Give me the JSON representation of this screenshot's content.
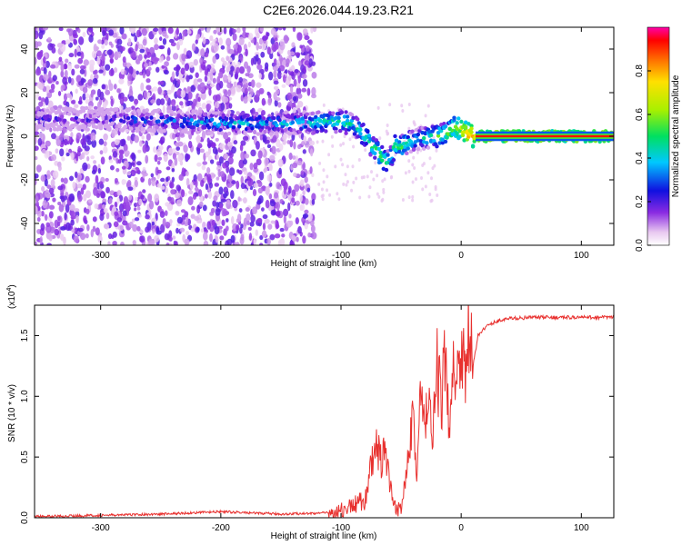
{
  "title": "C2E6.2026.044.19.23.R21",
  "chart_data": [
    {
      "type": "heatmap",
      "xlabel": "Height of straight line (km)",
      "ylabel": "Frequency (Hz)",
      "xlim": [
        -355,
        127
      ],
      "ylim": [
        -50,
        50
      ],
      "xticks": [
        -300,
        -200,
        -100,
        0,
        100
      ],
      "yticks": [
        -40,
        -20,
        0,
        20,
        40
      ],
      "colorbar": {
        "label": "Normalized spectral amplitude",
        "range": [
          0,
          1
        ],
        "ticks": [
          "0.0",
          "0.2",
          "0.4",
          "0.6",
          "0.8"
        ],
        "tick_values": [
          0,
          0.2,
          0.4,
          0.6,
          0.8
        ]
      },
      "ridge": {
        "x": [
          -355,
          -300,
          -250,
          -200,
          -150,
          -125,
          -110,
          -100,
          -95,
          -90,
          -85,
          -80,
          -75,
          -70,
          -65,
          -60,
          -55,
          -50,
          -45,
          -40,
          -35,
          -30,
          -25,
          -20,
          -15,
          -10,
          -5,
          0,
          5,
          10,
          127
        ],
        "y": [
          8,
          8,
          7,
          6,
          6,
          6,
          7,
          7,
          6,
          5,
          3,
          0,
          -4,
          -7,
          -10,
          -12,
          -4,
          -5,
          -3,
          -2,
          -1,
          -1,
          0,
          0,
          1,
          2,
          4,
          3,
          1,
          0,
          0
        ],
        "amp": [
          0.25,
          0.3,
          0.4,
          0.45,
          0.45,
          0.5,
          0.5,
          0.55,
          0.55,
          0.5,
          0.55,
          0.55,
          0.6,
          0.6,
          0.65,
          0.55,
          0.6,
          0.6,
          0.55,
          0.5,
          0.45,
          0.5,
          0.55,
          0.6,
          0.6,
          0.65,
          0.7,
          0.75,
          0.85,
          0.9,
          0.9
        ]
      }
    },
    {
      "type": "line",
      "xlabel": "Height of straight line (km)",
      "ylabel": "SNR (10 * v/v)",
      "multiplier": "(x10",
      "multiplier_exp": "4",
      "multiplier_close": ")",
      "xlim": [
        -355,
        127
      ],
      "ylim": [
        0,
        1.75
      ],
      "xticks": [
        -300,
        -200,
        -100,
        0,
        100
      ],
      "yticks": [
        "0.0",
        "0.5",
        "1.0",
        "1.5"
      ],
      "ytick_values": [
        0,
        0.5,
        1.0,
        1.5
      ],
      "color": "#e8302e",
      "series": [
        {
          "x": [
            -355,
            -300,
            -250,
            -200,
            -150,
            -110,
            -100,
            -90,
            -80,
            -75,
            -70,
            -67,
            -64,
            -60,
            -57,
            -54,
            -50,
            -47,
            -44,
            -40,
            -37,
            -34,
            -30,
            -27,
            -24,
            -20,
            -17,
            -14,
            -10,
            -7,
            -4,
            0,
            3,
            6,
            10,
            14,
            18,
            22,
            26,
            30,
            40,
            60,
            80,
            100,
            127
          ],
          "y": [
            0.01,
            0.02,
            0.03,
            0.05,
            0.03,
            0.04,
            0.06,
            0.1,
            0.15,
            0.4,
            0.6,
            0.45,
            0.55,
            0.3,
            0.12,
            0.06,
            0.08,
            0.3,
            0.6,
            0.9,
            0.3,
            1.0,
            0.7,
            1.1,
            0.5,
            1.3,
            0.9,
            1.25,
            0.8,
            1.4,
            1.0,
            1.55,
            1.2,
            1.5,
            1.25,
            1.5,
            1.55,
            1.58,
            1.6,
            1.62,
            1.64,
            1.65,
            1.65,
            1.65,
            1.65
          ]
        }
      ]
    }
  ]
}
